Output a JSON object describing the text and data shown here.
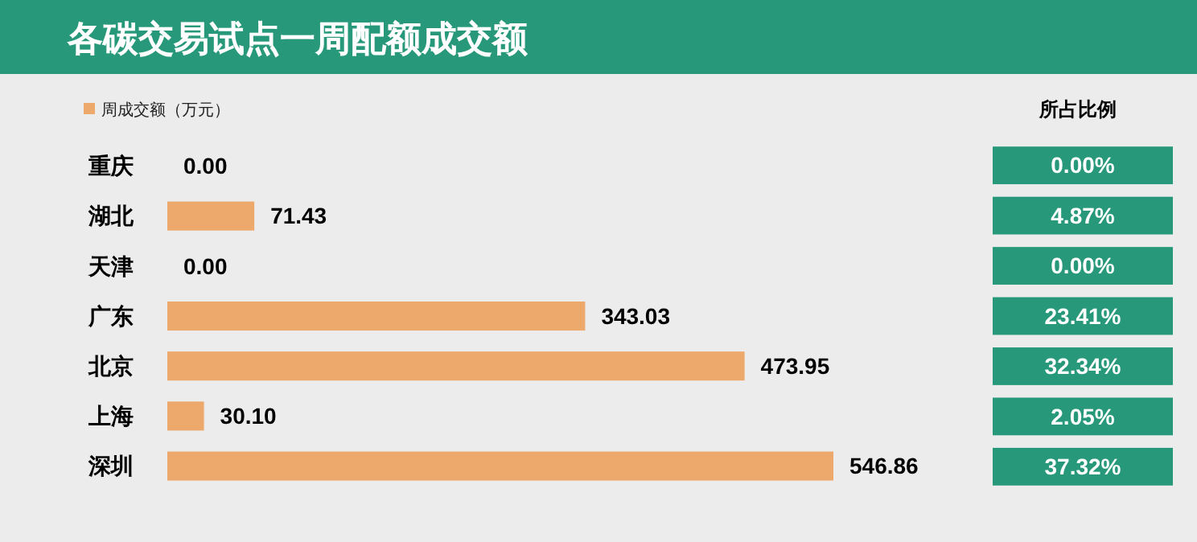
{
  "chart_data": {
    "type": "bar",
    "orientation": "horizontal",
    "title": "各碳交易试点一周配额成交额",
    "categories": [
      "重庆",
      "湖北",
      "天津",
      "广东",
      "北京",
      "上海",
      "深圳"
    ],
    "series": [
      {
        "name": "周成交额（万元）",
        "color": "#eda86c",
        "values": [
          0.0,
          71.43,
          0.0,
          343.03,
          473.95,
          30.1,
          546.86
        ],
        "value_labels": [
          "0.00",
          "71.43",
          "0.00",
          "343.03",
          "473.95",
          "30.10",
          "546.86"
        ]
      }
    ],
    "legend": "top left",
    "annotations": [
      "所占比例",
      "0.00%",
      "4.87%",
      "0.00%",
      "23.41%",
      "32.34%",
      "2.05%",
      "37.32%"
    ]
  }
}
